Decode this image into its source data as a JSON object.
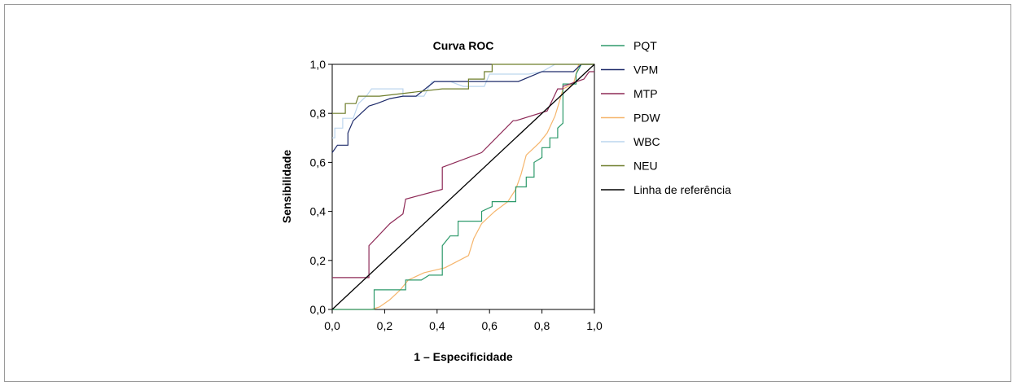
{
  "chart_data": {
    "type": "line",
    "title": "Curva ROC",
    "xlabel": "1 – Especificidade",
    "ylabel": "Sensibilidade",
    "xlim": [
      0,
      1
    ],
    "ylim": [
      0,
      1
    ],
    "x_ticks": [
      "0,0",
      "0,2",
      "0,4",
      "0,6",
      "0,8",
      "1,0"
    ],
    "y_ticks": [
      "0,0",
      "0,2",
      "0,4",
      "0,6",
      "0,8",
      "1,0"
    ],
    "grid": false,
    "legend_position": "right",
    "series": [
      {
        "name": "PQT",
        "color": "#2e9a6b",
        "points": [
          [
            0,
            0
          ],
          [
            0.16,
            0
          ],
          [
            0.16,
            0.08
          ],
          [
            0.28,
            0.08
          ],
          [
            0.28,
            0.12
          ],
          [
            0.34,
            0.12
          ],
          [
            0.37,
            0.14
          ],
          [
            0.42,
            0.14
          ],
          [
            0.42,
            0.26
          ],
          [
            0.45,
            0.3
          ],
          [
            0.48,
            0.3
          ],
          [
            0.48,
            0.36
          ],
          [
            0.57,
            0.36
          ],
          [
            0.57,
            0.4
          ],
          [
            0.61,
            0.42
          ],
          [
            0.61,
            0.44
          ],
          [
            0.7,
            0.44
          ],
          [
            0.7,
            0.5
          ],
          [
            0.74,
            0.5
          ],
          [
            0.74,
            0.54
          ],
          [
            0.77,
            0.54
          ],
          [
            0.77,
            0.6
          ],
          [
            0.8,
            0.62
          ],
          [
            0.8,
            0.66
          ],
          [
            0.83,
            0.66
          ],
          [
            0.83,
            0.7
          ],
          [
            0.86,
            0.7
          ],
          [
            0.86,
            0.74
          ],
          [
            0.88,
            0.76
          ],
          [
            0.88,
            0.92
          ],
          [
            0.93,
            0.92
          ],
          [
            0.93,
            0.96
          ],
          [
            0.95,
            1
          ],
          [
            1,
            1
          ]
        ]
      },
      {
        "name": "VPM",
        "color": "#1e2b6a",
        "points": [
          [
            0,
            0.64
          ],
          [
            0.02,
            0.67
          ],
          [
            0.06,
            0.67
          ],
          [
            0.06,
            0.72
          ],
          [
            0.08,
            0.77
          ],
          [
            0.11,
            0.8
          ],
          [
            0.14,
            0.83
          ],
          [
            0.17,
            0.84
          ],
          [
            0.22,
            0.86
          ],
          [
            0.27,
            0.87
          ],
          [
            0.32,
            0.87
          ],
          [
            0.39,
            0.93
          ],
          [
            0.55,
            0.93
          ],
          [
            0.68,
            0.93
          ],
          [
            0.71,
            0.93
          ],
          [
            0.8,
            0.97
          ],
          [
            0.92,
            0.97
          ],
          [
            0.95,
            1
          ],
          [
            1,
            1
          ]
        ]
      },
      {
        "name": "MTP",
        "color": "#8e2a57",
        "points": [
          [
            0,
            0.13
          ],
          [
            0.14,
            0.13
          ],
          [
            0.14,
            0.26
          ],
          [
            0.22,
            0.35
          ],
          [
            0.27,
            0.39
          ],
          [
            0.28,
            0.45
          ],
          [
            0.42,
            0.49
          ],
          [
            0.42,
            0.58
          ],
          [
            0.57,
            0.64
          ],
          [
            0.69,
            0.77
          ],
          [
            0.7,
            0.77
          ],
          [
            0.82,
            0.81
          ],
          [
            0.86,
            0.9
          ],
          [
            0.88,
            0.9
          ],
          [
            0.88,
            0.91
          ],
          [
            0.96,
            0.94
          ],
          [
            0.98,
            0.97
          ],
          [
            1,
            0.97
          ]
        ]
      },
      {
        "name": "PDW",
        "color": "#f5b56c",
        "points": [
          [
            0,
            0
          ],
          [
            0.15,
            0
          ],
          [
            0.18,
            0.01
          ],
          [
            0.22,
            0.04
          ],
          [
            0.26,
            0.08
          ],
          [
            0.29,
            0.12
          ],
          [
            0.35,
            0.15
          ],
          [
            0.43,
            0.17
          ],
          [
            0.52,
            0.22
          ],
          [
            0.54,
            0.29
          ],
          [
            0.57,
            0.35
          ],
          [
            0.62,
            0.4
          ],
          [
            0.67,
            0.44
          ],
          [
            0.7,
            0.49
          ],
          [
            0.72,
            0.55
          ],
          [
            0.74,
            0.63
          ],
          [
            0.79,
            0.68
          ],
          [
            0.82,
            0.72
          ],
          [
            0.85,
            0.79
          ],
          [
            0.87,
            0.86
          ],
          [
            0.88,
            0.9
          ],
          [
            0.92,
            0.92
          ],
          [
            0.94,
            1
          ],
          [
            1,
            1
          ]
        ]
      },
      {
        "name": "WBC",
        "color": "#bcd6ee",
        "points": [
          [
            0,
            0.7
          ],
          [
            0.01,
            0.7
          ],
          [
            0.01,
            0.74
          ],
          [
            0.04,
            0.74
          ],
          [
            0.04,
            0.78
          ],
          [
            0.08,
            0.78
          ],
          [
            0.1,
            0.84
          ],
          [
            0.13,
            0.87
          ],
          [
            0.15,
            0.9
          ],
          [
            0.27,
            0.9
          ],
          [
            0.27,
            0.87
          ],
          [
            0.35,
            0.87
          ],
          [
            0.38,
            0.93
          ],
          [
            0.45,
            0.93
          ],
          [
            0.5,
            0.91
          ],
          [
            0.58,
            0.91
          ],
          [
            0.6,
            0.96
          ],
          [
            0.75,
            0.96
          ],
          [
            0.8,
            0.97
          ],
          [
            0.85,
            1
          ],
          [
            1,
            1
          ]
        ]
      },
      {
        "name": "NEU",
        "color": "#6e7d2a",
        "points": [
          [
            0,
            0.8
          ],
          [
            0.05,
            0.8
          ],
          [
            0.05,
            0.84
          ],
          [
            0.09,
            0.84
          ],
          [
            0.1,
            0.87
          ],
          [
            0.18,
            0.87
          ],
          [
            0.42,
            0.9
          ],
          [
            0.52,
            0.9
          ],
          [
            0.52,
            0.94
          ],
          [
            0.58,
            0.94
          ],
          [
            0.58,
            0.97
          ],
          [
            0.61,
            0.97
          ],
          [
            0.61,
            1
          ],
          [
            1,
            1
          ]
        ]
      },
      {
        "name": "Linha de referência",
        "color": "#000000",
        "points": [
          [
            0,
            0
          ],
          [
            1,
            1
          ]
        ]
      }
    ]
  }
}
